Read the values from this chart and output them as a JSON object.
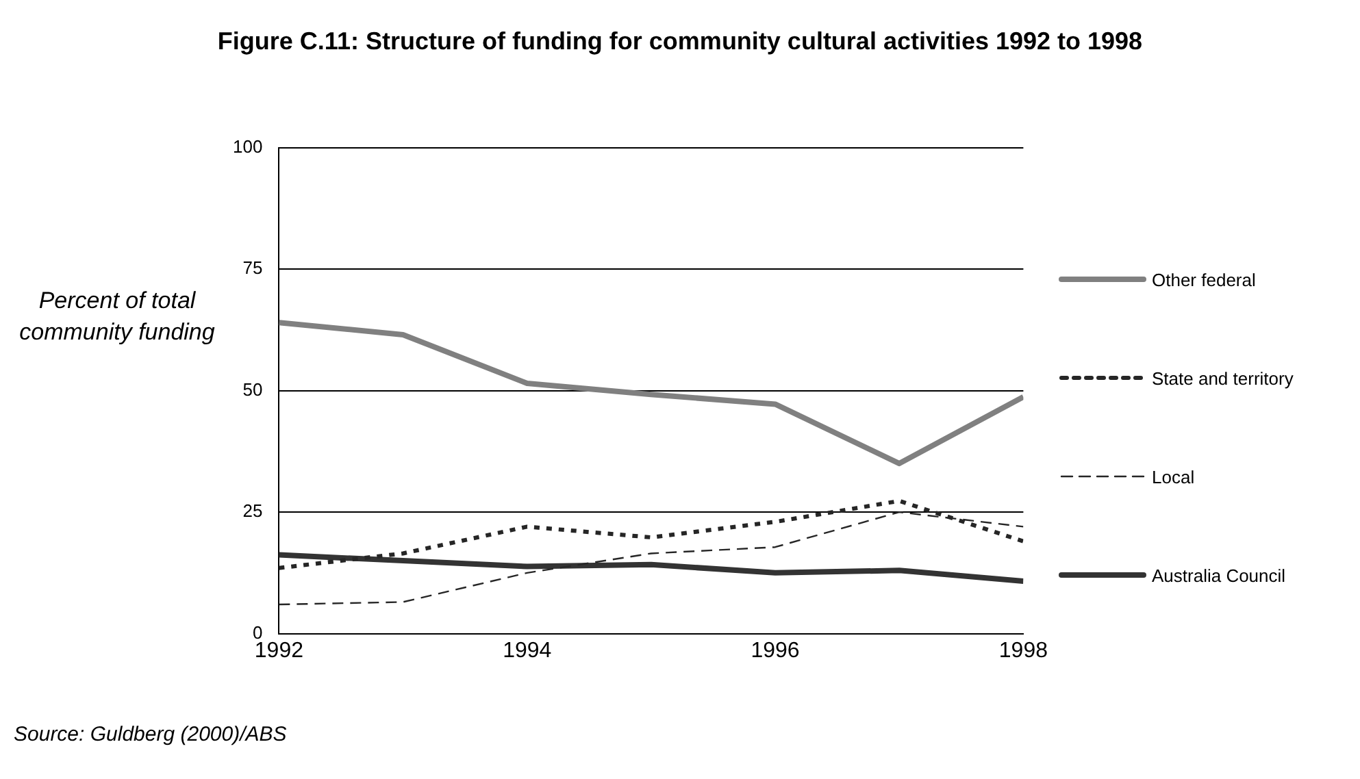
{
  "chart_data": {
    "type": "line",
    "title": "Figure C.11: Structure of funding for community cultural activities 1992 to 1998",
    "ylabel": "Percent of total community funding",
    "x": [
      1992,
      1993,
      1994,
      1995,
      1996,
      1997,
      1998
    ],
    "xlim": [
      1992,
      1998
    ],
    "xticks": [
      1992,
      1994,
      1996,
      1998
    ],
    "ylim": [
      0,
      100
    ],
    "yticks": [
      0,
      25,
      50,
      75,
      100
    ],
    "grid": "y",
    "legend": "right",
    "marker": "none",
    "annotations": [
      "Source: Guldberg (2000)/ABS"
    ],
    "series": [
      {
        "name": "Other federal",
        "color": "#808080",
        "line_style": "solid",
        "values": [
          64,
          61.5,
          51.5,
          49.2,
          47.2,
          35,
          48.7
        ]
      },
      {
        "name": "State and territory",
        "color": "#262626",
        "line_style": "dotted",
        "values": [
          13.5,
          16.5,
          22,
          19.8,
          23,
          27.3,
          19
        ]
      },
      {
        "name": "Local",
        "color": "#262626",
        "line_style": "dashed",
        "values": [
          6,
          6.5,
          12.5,
          16.5,
          17.8,
          25,
          22
        ]
      },
      {
        "name": "Australia Council",
        "color": "#333333",
        "line_style": "solid",
        "values": [
          16.2,
          15,
          13.8,
          14.2,
          12.5,
          13,
          10.8
        ]
      }
    ]
  }
}
